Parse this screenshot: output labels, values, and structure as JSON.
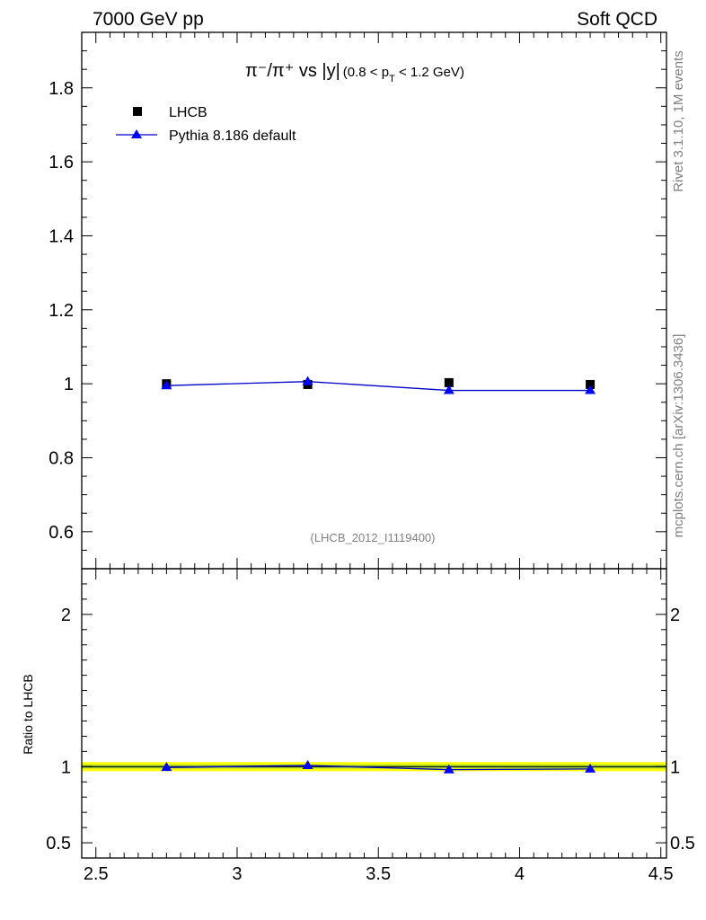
{
  "header": {
    "left": "7000 GeV pp",
    "right": "Soft QCD"
  },
  "title": {
    "main": "π⁻/π⁺ vs |y|",
    "sub_prefix": "(0.8 < p",
    "sub_sub": "T",
    "sub_suffix": " < 1.2 GeV)"
  },
  "side_labels": {
    "rivet": "Rivet 3.1.10,  1M events",
    "mcplots": "mcplots.cern.ch [arXiv:1306.3436]"
  },
  "analysis_id": "(LHCB_2012_I1119400)",
  "legend": {
    "data": "LHCB",
    "mc": "Pythia 8.186 default"
  },
  "colors": {
    "data": "#000000",
    "mc": "#0000ff",
    "band_outer": "#ffff00",
    "band_inner": "#9acd32"
  },
  "chart_data": [
    {
      "type": "scatter",
      "panel": "main",
      "title": "π⁻/π⁺ vs |y| (0.8 < pT < 1.2 GeV)",
      "xlim": [
        2.45,
        4.52
      ],
      "ylim": [
        0.5,
        1.95
      ],
      "y_tick_labels": [
        "0.6",
        "0.8",
        "1",
        "1.2",
        "1.4",
        "1.6",
        "1.8"
      ],
      "series": [
        {
          "name": "LHCB",
          "marker": "square",
          "x": [
            2.75,
            3.25,
            3.75,
            4.25
          ],
          "y": [
            1.0,
            0.998,
            1.003,
            0.998
          ]
        },
        {
          "name": "Pythia 8.186 default",
          "marker": "triangle",
          "line": true,
          "x": [
            2.75,
            3.25,
            3.75,
            4.25
          ],
          "y": [
            0.995,
            1.006,
            0.982,
            0.982
          ]
        }
      ]
    },
    {
      "type": "line",
      "panel": "ratio",
      "ylabel": "Ratio to LHCB",
      "xlim": [
        2.45,
        4.52
      ],
      "ylim": [
        0.4,
        2.3
      ],
      "x_tick_labels": [
        "2.5",
        "3",
        "3.5",
        "4",
        "4.5"
      ],
      "y_tick_labels": [
        "0.5",
        "1",
        "2"
      ],
      "series": [
        {
          "name": "Pythia 8.186 default / LHCB",
          "x": [
            2.75,
            3.25,
            3.75,
            4.25
          ],
          "y": [
            0.995,
            1.008,
            0.98,
            0.985
          ]
        }
      ]
    }
  ]
}
